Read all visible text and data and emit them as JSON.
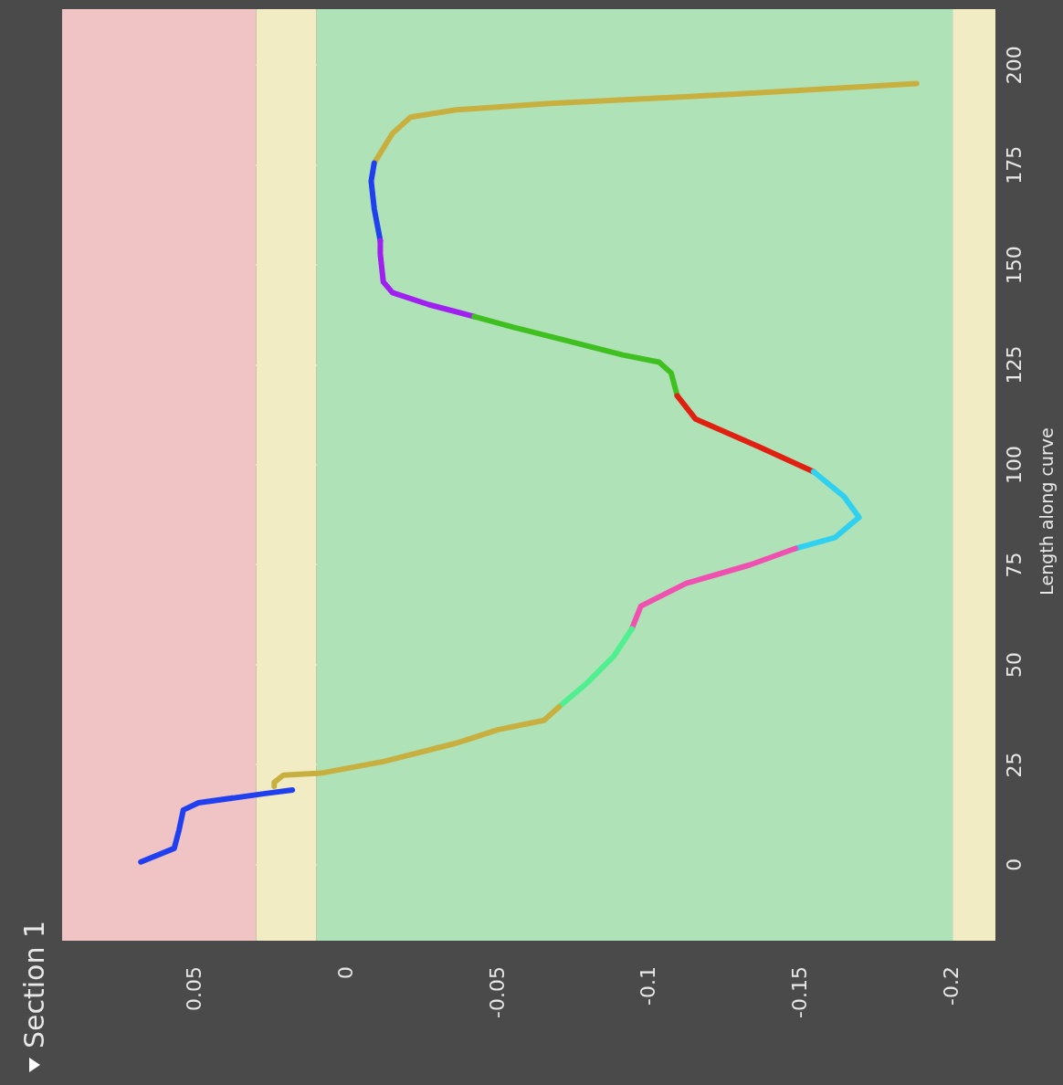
{
  "chart_data": {
    "type": "line",
    "title": "Section 1",
    "ylabel": "Length along curve",
    "ylim": [
      -19,
      214
    ],
    "yticks": [
      0,
      25,
      50,
      75,
      100,
      125,
      150,
      175,
      200
    ],
    "xlim": [
      0.094,
      -0.214
    ],
    "xticks": [
      0.05,
      0,
      -0.05,
      -0.1,
      -0.15,
      -0.2
    ],
    "grid": true,
    "legend": false,
    "marker": "none",
    "line_style": "solid",
    "bands": [
      {
        "axis": "x",
        "from": 0.03,
        "to": 0.094,
        "color": "#f0c4c4"
      },
      {
        "axis": "x",
        "from": 0.01,
        "to": 0.03,
        "color": "#f2ecc4"
      },
      {
        "axis": "x",
        "from": -0.2,
        "to": 0.01,
        "color": "#b0e2b8"
      },
      {
        "axis": "x",
        "from": -0.214,
        "to": -0.2,
        "color": "#f2ecc4"
      }
    ],
    "series": [
      {
        "color": "#2040f0",
        "values": [
          0.7,
          4.1,
          8.7,
          13.7,
          15.5,
          17.8,
          18.7
        ],
        "x": [
          0.068,
          0.057,
          0.0554,
          0.054,
          0.049,
          0.027,
          0.018
        ]
      },
      {
        "color": "#c8b040",
        "values": [
          19.6,
          20.6,
          22.4,
          22.9,
          25.8,
          30.4,
          33.8,
          36.1,
          39.5
        ],
        "x": [
          0.024,
          0.024,
          0.021,
          0.0087,
          -0.012,
          -0.036,
          -0.05,
          -0.065,
          -0.07
        ]
      },
      {
        "color": "#50f090",
        "values": [
          39.5,
          45.3,
          52.1,
          59
        ],
        "x": [
          -0.07,
          -0.079,
          -0.088,
          -0.094
        ]
      },
      {
        "color": "#f050b0",
        "values": [
          59,
          64.7,
          70.4,
          75,
          79.1
        ],
        "x": [
          -0.094,
          -0.097,
          -0.112,
          -0.133,
          -0.148
        ]
      },
      {
        "color": "#30d0f0",
        "values": [
          79.1,
          81.8,
          86.9,
          92.1,
          98.3
        ],
        "x": [
          -0.148,
          -0.161,
          -0.169,
          -0.164,
          -0.154
        ]
      },
      {
        "color": "#e02010",
        "values": [
          98.3,
          104.5,
          111.5,
          117.3
        ],
        "x": [
          -0.154,
          -0.136,
          -0.115,
          -0.109
        ]
      },
      {
        "color": "#40c020",
        "values": [
          117.3,
          123,
          125.7,
          127.5,
          131,
          134.4,
          137.1
        ],
        "x": [
          -0.109,
          -0.107,
          -0.103,
          -0.091,
          -0.073,
          -0.055,
          -0.042
        ]
      },
      {
        "color": "#a020f0",
        "values": [
          137.1,
          140.1,
          143.1,
          145.8,
          152.7,
          156.1
        ],
        "x": [
          -0.042,
          -0.027,
          -0.015,
          -0.012,
          -0.011,
          -0.011
        ]
      },
      {
        "color": "#2040f0",
        "values": [
          156.1,
          164.1,
          171,
          175.5
        ],
        "x": [
          -0.011,
          -0.009,
          -0.008,
          -0.009
        ]
      },
      {
        "color": "#c8b040",
        "values": [
          175.5,
          182.9,
          187,
          188.8,
          190.4,
          192.7,
          195.4
        ],
        "x": [
          -0.009,
          -0.015,
          -0.021,
          -0.036,
          -0.067,
          -0.127,
          -0.188
        ]
      }
    ]
  }
}
